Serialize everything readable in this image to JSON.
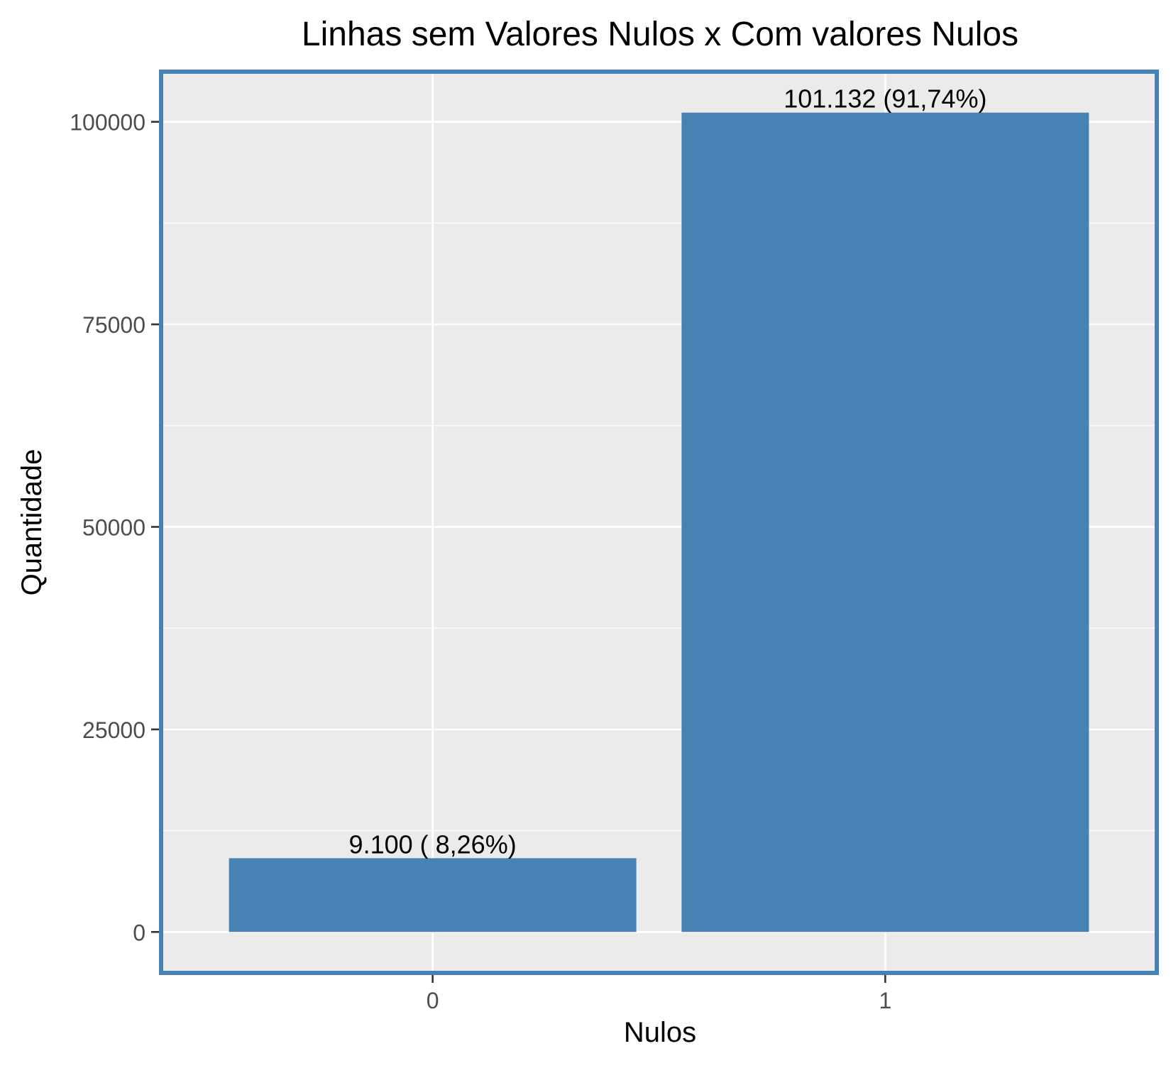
{
  "chart_data": {
    "type": "bar",
    "title": "Linhas sem Valores Nulos x Com valores Nulos",
    "xlabel": "Nulos",
    "ylabel": "Quantidade",
    "categories": [
      "0",
      "1"
    ],
    "values": [
      9100,
      101132
    ],
    "data_labels": [
      "9.100 ( 8,26%)",
      "101.132 (91,74%)"
    ],
    "ylim": [
      -5056.6,
      106188.6
    ],
    "y_ticks": [
      0,
      25000,
      50000,
      75000,
      100000
    ],
    "y_tick_labels": [
      "0",
      "25000",
      "50000",
      "75000",
      "100000"
    ],
    "grid": true,
    "legend": "none",
    "colors": {
      "bar": "#4682B4",
      "panel_background": "#EBEBEB",
      "panel_border": "#4682B4",
      "grid": "#FFFFFF",
      "tick_text": "#4D4D4D",
      "text": "#000000"
    }
  }
}
